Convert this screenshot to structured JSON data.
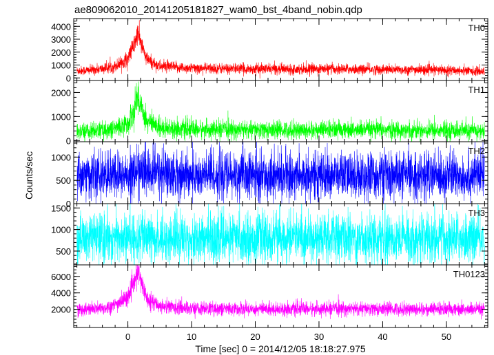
{
  "chart_data": {
    "type": "line",
    "title": "ae809062010_20141205181827_wam0_bst_4band_nobin.qdp",
    "xlabel": "Time [sec] 0 = 2014/12/05 18:18:27.975",
    "ylabel": "Counts/sec",
    "xlim": [
      -8.5,
      56.5
    ],
    "x_ticks": [
      0,
      10,
      20,
      30,
      40,
      50
    ],
    "x_tick_labels": [
      "0",
      "10",
      "20",
      "30",
      "40",
      "50"
    ],
    "grid": false,
    "panels": [
      {
        "name": "TH0",
        "color": "#ff0000",
        "ylim": [
          -200,
          4600
        ],
        "y_ticks": [
          0,
          1000,
          2000,
          3000,
          4000
        ],
        "y_tick_labels": [
          "0",
          "1000",
          "2000",
          "3000",
          "4000"
        ],
        "baseline": 700,
        "noise": 200,
        "peak": 2800,
        "peak_time": 1.6,
        "x": [
          -8,
          -6,
          -4,
          -2,
          0,
          1,
          1.6,
          2,
          3,
          5,
          10,
          20,
          30,
          40,
          50,
          56
        ],
        "y": [
          550,
          600,
          700,
          900,
          1500,
          2600,
          3500,
          2700,
          1400,
          900,
          750,
          700,
          700,
          650,
          600,
          500
        ]
      },
      {
        "name": "TH1",
        "color": "#00ff00",
        "ylim": [
          -50,
          2500
        ],
        "y_ticks": [
          0,
          1000,
          2000
        ],
        "y_tick_labels": [
          "0",
          "1000",
          "2000"
        ],
        "baseline": 430,
        "noise": 180,
        "peak": 1500,
        "peak_time": 1.6,
        "x": [
          -8,
          -4,
          -2,
          0,
          1,
          1.6,
          2,
          3,
          5,
          10,
          20,
          30,
          40,
          50,
          56
        ],
        "y": [
          380,
          420,
          500,
          700,
          1200,
          1900,
          1500,
          800,
          550,
          460,
          440,
          440,
          440,
          420,
          380
        ]
      },
      {
        "name": "TH2",
        "color": "#0000ff",
        "ylim": [
          0,
          1330
        ],
        "y_ticks": [
          0,
          500,
          1000
        ],
        "y_tick_labels": [
          "0",
          "500",
          "1000"
        ],
        "baseline": 600,
        "noise": 250,
        "peak": 150,
        "peak_time": 1.6,
        "x": [
          -8,
          0,
          1.6,
          10,
          20,
          30,
          40,
          50,
          56
        ],
        "y": [
          600,
          600,
          700,
          600,
          600,
          600,
          600,
          600,
          600
        ]
      },
      {
        "name": "TH3",
        "color": "#00ffff",
        "ylim": [
          180,
          1600
        ],
        "y_ticks": [
          500,
          1000,
          1500
        ],
        "y_tick_labels": [
          "500",
          "1000",
          "1500"
        ],
        "baseline": 800,
        "noise": 280,
        "peak": 0,
        "peak_time": 1.6,
        "x": [
          -8,
          0,
          10,
          20,
          30,
          40,
          50,
          56
        ],
        "y": [
          800,
          800,
          800,
          800,
          800,
          800,
          800,
          800
        ]
      },
      {
        "name": "TH0123",
        "color": "#ff00ff",
        "ylim": [
          -200,
          7400
        ],
        "y_ticks": [
          2000,
          4000,
          6000
        ],
        "y_tick_labels": [
          "2000",
          "4000",
          "6000"
        ],
        "baseline": 2000,
        "noise": 400,
        "peak": 4200,
        "peak_time": 1.6,
        "x": [
          -8,
          -4,
          -2,
          0,
          1,
          1.6,
          2,
          3,
          5,
          10,
          20,
          30,
          40,
          50,
          56
        ],
        "y": [
          1950,
          2100,
          2500,
          3500,
          5200,
          6500,
          5500,
          3300,
          2400,
          2100,
          2050,
          2050,
          2050,
          2000,
          1950
        ]
      }
    ]
  }
}
